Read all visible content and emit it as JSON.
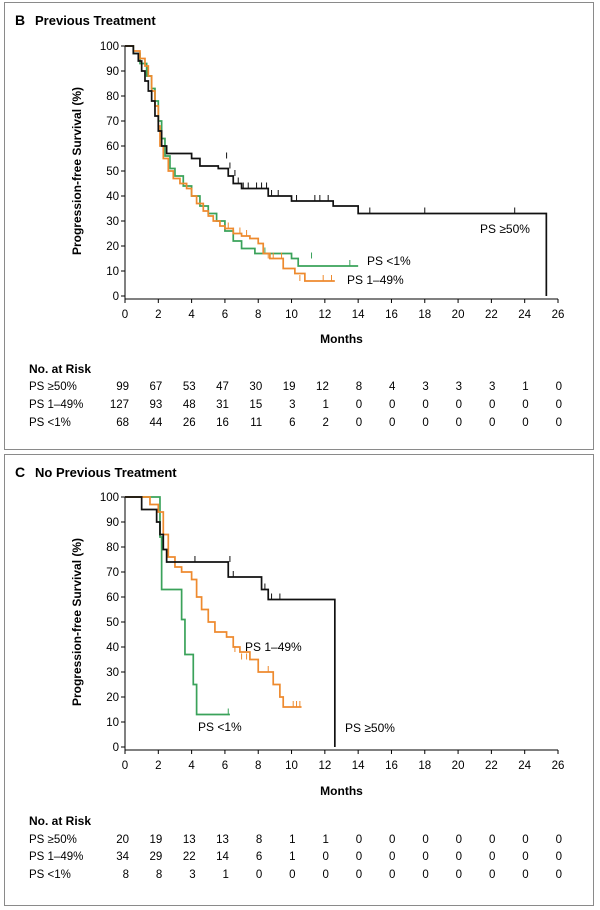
{
  "colors": {
    "ps50": "#111111",
    "ps149": "#ee8a2e",
    "ps1": "#3aa25a",
    "frame": "#8a8a8a"
  },
  "chart_data": [
    {
      "type": "line",
      "panel_letter": "B",
      "title": "Previous Treatment",
      "xlabel": "Months",
      "ylabel": "Progression-free Survival (%)",
      "xlim": [
        0,
        26
      ],
      "ylim": [
        0,
        100
      ],
      "x_ticks": [
        "0",
        "2",
        "4",
        "6",
        "8",
        "10",
        "12",
        "14",
        "16",
        "18",
        "20",
        "22",
        "24",
        "26"
      ],
      "y_ticks": [
        "0",
        "10",
        "20",
        "30",
        "40",
        "50",
        "60",
        "70",
        "80",
        "90",
        "100"
      ],
      "series": [
        {
          "key": "ps50",
          "name": "PS ≥50%",
          "steps": [
            [
              0,
              100
            ],
            [
              0.5,
              97
            ],
            [
              0.8,
              94
            ],
            [
              1.0,
              90
            ],
            [
              1.2,
              86
            ],
            [
              1.4,
              82
            ],
            [
              1.6,
              78
            ],
            [
              1.8,
              72
            ],
            [
              2.0,
              66
            ],
            [
              2.2,
              60
            ],
            [
              2.5,
              57
            ],
            [
              4.0,
              55
            ],
            [
              4.5,
              52
            ],
            [
              5.6,
              51
            ],
            [
              6.2,
              48
            ],
            [
              6.5,
              45
            ],
            [
              7.0,
              43
            ],
            [
              8.6,
              40
            ],
            [
              10.0,
              38
            ],
            [
              12.5,
              36
            ],
            [
              14.0,
              33
            ],
            [
              25.3,
              0
            ]
          ],
          "censors": [
            [
              6.1,
              55
            ],
            [
              6.3,
              51
            ],
            [
              6.6,
              48
            ],
            [
              6.8,
              45
            ],
            [
              7.1,
              43
            ],
            [
              7.4,
              43
            ],
            [
              7.9,
              43
            ],
            [
              8.2,
              43
            ],
            [
              8.5,
              43
            ],
            [
              8.8,
              40
            ],
            [
              9.2,
              40
            ],
            [
              10.3,
              38
            ],
            [
              11.4,
              38
            ],
            [
              11.7,
              38
            ],
            [
              12.2,
              38
            ],
            [
              14.7,
              33
            ],
            [
              18.0,
              33
            ],
            [
              23.4,
              33
            ]
          ]
        },
        {
          "key": "ps149",
          "name": "PS 1–49%",
          "steps": [
            [
              0,
              100
            ],
            [
              0.5,
              98
            ],
            [
              0.9,
              95
            ],
            [
              1.2,
              92
            ],
            [
              1.4,
              88
            ],
            [
              1.6,
              82
            ],
            [
              1.8,
              76
            ],
            [
              2.0,
              68
            ],
            [
              2.1,
              60
            ],
            [
              2.3,
              55
            ],
            [
              2.6,
              50
            ],
            [
              2.9,
              47
            ],
            [
              3.3,
              45
            ],
            [
              3.7,
              43
            ],
            [
              4.0,
              40
            ],
            [
              4.3,
              37
            ],
            [
              4.7,
              34
            ],
            [
              5.0,
              32
            ],
            [
              5.3,
              30
            ],
            [
              5.7,
              28
            ],
            [
              6.0,
              27
            ],
            [
              6.5,
              25
            ],
            [
              7.0,
              24
            ],
            [
              7.5,
              23
            ],
            [
              8.0,
              21
            ],
            [
              8.3,
              17
            ],
            [
              8.7,
              15
            ],
            [
              9.5,
              11
            ],
            [
              10.2,
              9
            ],
            [
              10.8,
              6
            ],
            [
              12.6,
              6
            ]
          ],
          "censors": [
            [
              6.2,
              27
            ],
            [
              6.5,
              25
            ],
            [
              6.9,
              25
            ],
            [
              7.3,
              24
            ],
            [
              8.6,
              15
            ],
            [
              8.9,
              15
            ],
            [
              9.4,
              15
            ],
            [
              10.5,
              6
            ],
            [
              11.9,
              6
            ],
            [
              12.4,
              6
            ]
          ]
        },
        {
          "key": "ps1",
          "name": "PS <1%",
          "steps": [
            [
              0,
              100
            ],
            [
              0.5,
              97
            ],
            [
              0.9,
              93
            ],
            [
              1.3,
              88
            ],
            [
              1.6,
              83
            ],
            [
              1.8,
              78
            ],
            [
              2.0,
              70
            ],
            [
              2.2,
              63
            ],
            [
              2.4,
              56
            ],
            [
              2.7,
              51
            ],
            [
              3.0,
              48
            ],
            [
              3.5,
              44
            ],
            [
              4.0,
              40
            ],
            [
              4.5,
              36
            ],
            [
              5.0,
              33
            ],
            [
              5.5,
              30
            ],
            [
              6.0,
              26
            ],
            [
              6.5,
              22
            ],
            [
              7.0,
              19
            ],
            [
              7.8,
              17
            ],
            [
              9.0,
              17
            ],
            [
              10.0,
              15
            ],
            [
              10.4,
              12
            ],
            [
              14.0,
              12
            ]
          ],
          "censors": [
            [
              8.4,
              17
            ],
            [
              11.2,
              15
            ],
            [
              13.5,
              12
            ]
          ]
        }
      ],
      "annotations": [
        {
          "key": "ps50",
          "text": "PS ≥50%"
        },
        {
          "key": "ps1",
          "text": "PS <1%"
        },
        {
          "key": "ps149",
          "text": "PS 1–49%"
        }
      ],
      "risk_table": {
        "title": "No. at Risk",
        "rows": [
          {
            "label": "PS ≥50%",
            "values": [
              "99",
              "67",
              "53",
              "47",
              "30",
              "19",
              "12",
              "8",
              "4",
              "3",
              "3",
              "3",
              "1",
              "0"
            ]
          },
          {
            "label": "PS 1–49%",
            "values": [
              "127",
              "93",
              "48",
              "31",
              "15",
              "3",
              "1",
              "0",
              "0",
              "0",
              "0",
              "0",
              "0",
              "0"
            ]
          },
          {
            "label": "PS <1%",
            "values": [
              "68",
              "44",
              "26",
              "16",
              "11",
              "6",
              "2",
              "0",
              "0",
              "0",
              "0",
              "0",
              "0",
              "0"
            ]
          }
        ]
      }
    },
    {
      "type": "line",
      "panel_letter": "C",
      "title": "No Previous Treatment",
      "xlabel": "Months",
      "ylabel": "Progression-free Survival (%)",
      "xlim": [
        0,
        26
      ],
      "ylim": [
        0,
        100
      ],
      "x_ticks": [
        "0",
        "2",
        "4",
        "6",
        "8",
        "10",
        "12",
        "14",
        "16",
        "18",
        "20",
        "22",
        "24",
        "26"
      ],
      "y_ticks": [
        "0",
        "10",
        "20",
        "30",
        "40",
        "50",
        "60",
        "70",
        "80",
        "90",
        "100"
      ],
      "series": [
        {
          "key": "ps50",
          "name": "PS ≥50%",
          "steps": [
            [
              0,
              100
            ],
            [
              1.0,
              95
            ],
            [
              1.9,
              90
            ],
            [
              2.1,
              85
            ],
            [
              2.3,
              79
            ],
            [
              2.5,
              74
            ],
            [
              6.2,
              68
            ],
            [
              8.2,
              63
            ],
            [
              8.6,
              59
            ],
            [
              12.6,
              0
            ]
          ],
          "censors": [
            [
              4.2,
              74
            ],
            [
              6.3,
              74
            ],
            [
              6.5,
              68
            ],
            [
              8.4,
              63
            ],
            [
              8.8,
              59
            ],
            [
              9.3,
              59
            ]
          ]
        },
        {
          "key": "ps149",
          "name": "PS 1–49%",
          "steps": [
            [
              0,
              100
            ],
            [
              1.5,
              97
            ],
            [
              2.0,
              94
            ],
            [
              2.3,
              85
            ],
            [
              2.6,
              76
            ],
            [
              3.0,
              72
            ],
            [
              3.4,
              70
            ],
            [
              4.0,
              67
            ],
            [
              4.3,
              60
            ],
            [
              4.6,
              55
            ],
            [
              5.0,
              50
            ],
            [
              5.4,
              46
            ],
            [
              6.1,
              44
            ],
            [
              6.5,
              40
            ],
            [
              6.9,
              38
            ],
            [
              7.5,
              35
            ],
            [
              8.0,
              30
            ],
            [
              8.9,
              25
            ],
            [
              9.3,
              20
            ],
            [
              9.5,
              16
            ],
            [
              10.6,
              16
            ]
          ],
          "censors": [
            [
              6.6,
              38
            ],
            [
              7.0,
              35
            ],
            [
              7.3,
              35
            ],
            [
              8.6,
              30
            ],
            [
              10.1,
              16
            ],
            [
              10.3,
              16
            ],
            [
              10.5,
              16
            ]
          ]
        },
        {
          "key": "ps1",
          "name": "PS <1%",
          "steps": [
            [
              0,
              100
            ],
            [
              2.1,
              84
            ],
            [
              2.2,
              63
            ],
            [
              3.4,
              51
            ],
            [
              3.6,
              37
            ],
            [
              4.1,
              25
            ],
            [
              4.3,
              13
            ],
            [
              6.3,
              13
            ]
          ],
          "censors": [
            [
              6.2,
              13
            ]
          ]
        }
      ],
      "annotations": [
        {
          "key": "ps149",
          "text": "PS 1–49%"
        },
        {
          "key": "ps1",
          "text": "PS <1%"
        },
        {
          "key": "ps50",
          "text": "PS ≥50%"
        }
      ],
      "risk_table": {
        "title": "No. at Risk",
        "rows": [
          {
            "label": "PS ≥50%",
            "values": [
              "20",
              "19",
              "13",
              "13",
              "8",
              "1",
              "1",
              "0",
              "0",
              "0",
              "0",
              "0",
              "0",
              "0"
            ]
          },
          {
            "label": "PS 1–49%",
            "values": [
              "34",
              "29",
              "22",
              "14",
              "6",
              "1",
              "0",
              "0",
              "0",
              "0",
              "0",
              "0",
              "0",
              "0"
            ]
          },
          {
            "label": "PS <1%",
            "values": [
              "8",
              "8",
              "3",
              "1",
              "0",
              "0",
              "0",
              "0",
              "0",
              "0",
              "0",
              "0",
              "0",
              "0"
            ]
          }
        ]
      }
    }
  ]
}
